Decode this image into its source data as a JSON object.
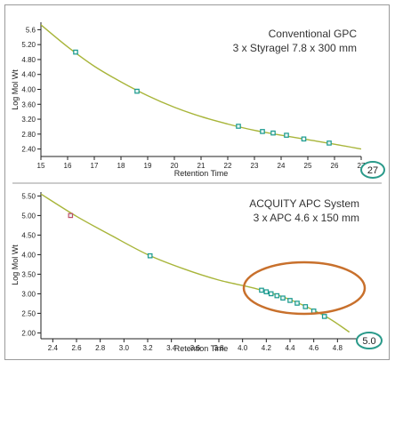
{
  "chart_data": [
    {
      "type": "scatter",
      "title": "Conventional GPC",
      "subtitle": "3 x Styragel 7.8 x 300 mm",
      "xlabel": "Retention Time",
      "ylabel": "Log Mol Wt",
      "xlim": [
        15,
        27
      ],
      "ylim": [
        2.2,
        5.8
      ],
      "xticks": [
        "15",
        "16",
        "17",
        "18",
        "19",
        "20",
        "21",
        "22",
        "23",
        "24",
        "25",
        "26",
        "27"
      ],
      "yticks": [
        "2.40",
        "2.80",
        "3.20",
        "3.60",
        "4.00",
        "4.40",
        "4.80",
        "5.20",
        "5.6"
      ],
      "badge": "27",
      "grid": false,
      "points": [
        {
          "x": 16.3,
          "y": 5.0
        },
        {
          "x": 18.6,
          "y": 3.95
        },
        {
          "x": 22.4,
          "y": 3.01
        },
        {
          "x": 23.3,
          "y": 2.87
        },
        {
          "x": 23.7,
          "y": 2.83
        },
        {
          "x": 24.2,
          "y": 2.77
        },
        {
          "x": 24.85,
          "y": 2.67
        },
        {
          "x": 25.8,
          "y": 2.56
        }
      ],
      "fit_curve": [
        {
          "x": 15.0,
          "y": 5.73
        },
        {
          "x": 16.0,
          "y": 5.14
        },
        {
          "x": 17.0,
          "y": 4.62
        },
        {
          "x": 18.0,
          "y": 4.2
        },
        {
          "x": 19.0,
          "y": 3.83
        },
        {
          "x": 20.0,
          "y": 3.52
        },
        {
          "x": 21.0,
          "y": 3.27
        },
        {
          "x": 22.0,
          "y": 3.07
        },
        {
          "x": 23.0,
          "y": 2.9
        },
        {
          "x": 24.0,
          "y": 2.77
        },
        {
          "x": 25.0,
          "y": 2.65
        },
        {
          "x": 26.0,
          "y": 2.53
        },
        {
          "x": 27.0,
          "y": 2.4
        }
      ],
      "colors": {
        "curve": "#a8b53a",
        "point": "#1a9a8f",
        "badge": "#2a9a8a"
      }
    },
    {
      "type": "scatter",
      "title": "ACQUITY APC System",
      "subtitle": "3 x APC 4.6 x 150 mm",
      "xlabel": "Retention Time",
      "ylabel": "Log Mol Wt",
      "xlim": [
        2.3,
        5.0
      ],
      "ylim": [
        1.85,
        5.6
      ],
      "xticks": [
        "2.4",
        "2.6",
        "2.8",
        "3.0",
        "3.2",
        "3.4",
        "3.6",
        "3.8",
        "4.0",
        "4.2",
        "4.4",
        "4.6",
        "4.8"
      ],
      "yticks": [
        "2.00",
        "2.50",
        "3.00",
        "3.50",
        "4.00",
        "4.50",
        "5.00",
        "5.50"
      ],
      "badge": "5.0",
      "grid": false,
      "points": [
        {
          "x": 2.55,
          "y": 5.0,
          "highlight": true
        },
        {
          "x": 3.22,
          "y": 3.97
        },
        {
          "x": 4.16,
          "y": 3.09
        },
        {
          "x": 4.2,
          "y": 3.05
        },
        {
          "x": 4.24,
          "y": 3.0
        },
        {
          "x": 4.29,
          "y": 2.95
        },
        {
          "x": 4.34,
          "y": 2.89
        },
        {
          "x": 4.4,
          "y": 2.83
        },
        {
          "x": 4.46,
          "y": 2.76
        },
        {
          "x": 4.53,
          "y": 2.67
        },
        {
          "x": 4.6,
          "y": 2.56
        },
        {
          "x": 4.69,
          "y": 2.42
        }
      ],
      "fit_curve": [
        {
          "x": 2.3,
          "y": 5.55
        },
        {
          "x": 2.6,
          "y": 4.98
        },
        {
          "x": 2.9,
          "y": 4.48
        },
        {
          "x": 3.2,
          "y": 4.0
        },
        {
          "x": 3.5,
          "y": 3.64
        },
        {
          "x": 3.8,
          "y": 3.35
        },
        {
          "x": 4.1,
          "y": 3.14
        },
        {
          "x": 4.4,
          "y": 2.85
        },
        {
          "x": 4.7,
          "y": 2.42
        },
        {
          "x": 4.9,
          "y": 2.02
        }
      ],
      "colors": {
        "curve": "#a8b53a",
        "point": "#1a9a8f",
        "highlight_point": "#c0506a",
        "ellipse": "#c8702c",
        "badge": "#2a9a8a"
      }
    }
  ]
}
